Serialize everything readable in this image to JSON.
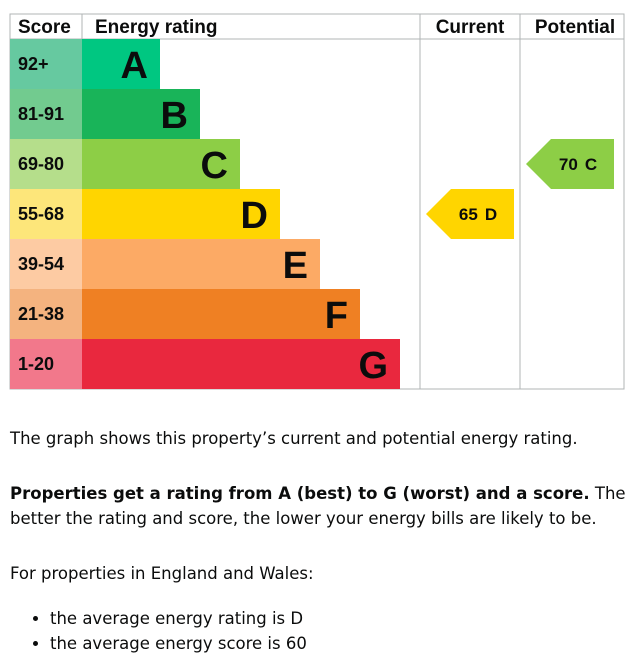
{
  "header": {
    "score": "Score",
    "rating": "Energy rating",
    "current": "Current",
    "potential": "Potential"
  },
  "bands": [
    {
      "score": "92+",
      "letter": "A",
      "color": "#00c781",
      "light": "#66c9a0"
    },
    {
      "score": "81-91",
      "letter": "B",
      "color": "#19b459",
      "light": "#72cb8f"
    },
    {
      "score": "69-80",
      "letter": "C",
      "color": "#8dce46",
      "light": "#b5de8b"
    },
    {
      "score": "55-68",
      "letter": "D",
      "color": "#ffd500",
      "light": "#fde67a"
    },
    {
      "score": "39-54",
      "letter": "E",
      "color": "#fcaa65",
      "light": "#fdcba3"
    },
    {
      "score": "21-38",
      "letter": "F",
      "color": "#ef8023",
      "light": "#f4b37f"
    },
    {
      "score": "1-20",
      "letter": "G",
      "color": "#e9283e",
      "light": "#f2788b"
    }
  ],
  "current": {
    "score": "65",
    "letter": "D",
    "band": 3
  },
  "potential": {
    "score": "70",
    "letter": "C",
    "band": 2
  },
  "text": {
    "intro": "The graph shows this property’s current and potential energy rating.",
    "bold": "Properties get a rating from A (best) to G (worst) and a score.",
    "rest": " The better the rating and score, the lower your energy bills are likely to be.",
    "region": "For properties in England and Wales:",
    "bullets": [
      "the average energy rating is D",
      "the average energy score is 60"
    ]
  }
}
